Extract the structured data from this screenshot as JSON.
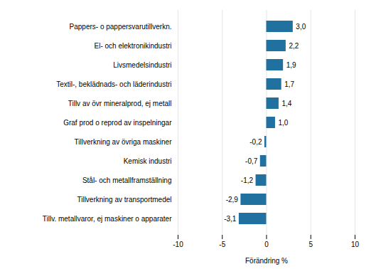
{
  "chart_data": {
    "type": "bar",
    "orientation": "horizontal",
    "categories": [
      "Tillv. metallvaror, ej maskiner o apparater",
      "Tillverkning av transportmedel",
      "Stål- och metallframställning",
      "Kemisk industri",
      "Tillverkning av övriga maskiner",
      "Graf prod o reprod av inspelningar",
      "Tillv av övr mineralprod, ej metall",
      "Textil-, beklädnads- och läderindustri",
      "Livsmedelsindustri",
      "El- och elektronikindustri",
      "Pappers- o pappersvarutillverkn."
    ],
    "values": [
      -3.1,
      -2.9,
      -1.2,
      -0.7,
      -0.2,
      1.0,
      1.4,
      1.7,
      1.9,
      2.2,
      3.0
    ],
    "value_labels": [
      "-3,1",
      "-2,9",
      "-1,2",
      "-0,7",
      "-0,2",
      "1,0",
      "1,4",
      "1,7",
      "1,9",
      "2,2",
      "3,0"
    ],
    "data_labels": true,
    "color": "#2070a0",
    "xlabel": "Förändring %",
    "xlim": [
      -10,
      10
    ],
    "xticks": [
      -10,
      -5,
      0,
      5,
      10
    ],
    "grid": true
  }
}
